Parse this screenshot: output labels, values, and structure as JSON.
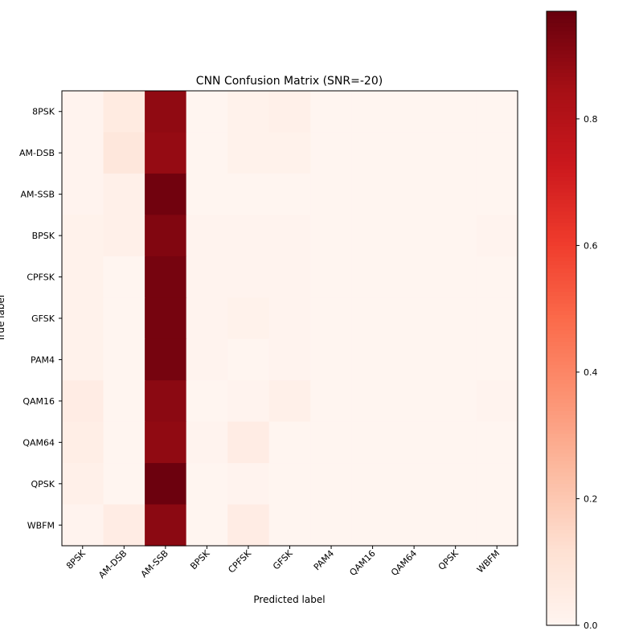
{
  "chart_data": {
    "type": "heatmap",
    "title": "CNN Confusion Matrix (SNR=-20)",
    "xlabel": "Predicted label",
    "ylabel": "True label",
    "x_categories": [
      "8PSK",
      "AM-DSB",
      "AM-SSB",
      "BPSK",
      "CPFSK",
      "GFSK",
      "PAM4",
      "QAM16",
      "QAM64",
      "QPSK",
      "WBFM"
    ],
    "y_categories": [
      "8PSK",
      "AM-DSB",
      "AM-SSB",
      "BPSK",
      "CPFSK",
      "GFSK",
      "PAM4",
      "QAM16",
      "QAM64",
      "QPSK",
      "WBFM"
    ],
    "values": [
      [
        0.01,
        0.06,
        0.89,
        0.0,
        0.02,
        0.03,
        0.0,
        0.0,
        0.0,
        0.0,
        0.0
      ],
      [
        0.01,
        0.08,
        0.88,
        0.0,
        0.02,
        0.02,
        0.0,
        0.0,
        0.0,
        0.0,
        0.0
      ],
      [
        0.01,
        0.03,
        0.95,
        0.0,
        0.0,
        0.0,
        0.0,
        0.0,
        0.0,
        0.0,
        0.0
      ],
      [
        0.02,
        0.03,
        0.92,
        0.01,
        0.01,
        0.01,
        0.0,
        0.0,
        0.0,
        0.0,
        0.01
      ],
      [
        0.02,
        0.0,
        0.94,
        0.01,
        0.01,
        0.01,
        0.0,
        0.0,
        0.0,
        0.0,
        0.0
      ],
      [
        0.02,
        0.0,
        0.94,
        0.01,
        0.02,
        0.01,
        0.0,
        0.0,
        0.0,
        0.0,
        0.0
      ],
      [
        0.02,
        0.0,
        0.94,
        0.01,
        0.0,
        0.01,
        0.0,
        0.0,
        0.0,
        0.0,
        0.0
      ],
      [
        0.05,
        0.0,
        0.9,
        0.0,
        0.01,
        0.03,
        0.0,
        0.0,
        0.0,
        0.0,
        0.01
      ],
      [
        0.04,
        0.0,
        0.89,
        0.01,
        0.05,
        0.0,
        0.0,
        0.0,
        0.0,
        0.0,
        0.0
      ],
      [
        0.03,
        0.0,
        0.96,
        0.0,
        0.01,
        0.0,
        0.0,
        0.0,
        0.0,
        0.0,
        0.0
      ],
      [
        0.01,
        0.05,
        0.9,
        0.0,
        0.05,
        0.0,
        0.0,
        0.0,
        0.0,
        0.0,
        0.0
      ]
    ],
    "colormap": "Reds",
    "colormap_stops": [
      "#fff5f0",
      "#fee0d2",
      "#fcbba1",
      "#fc9272",
      "#fb6a4a",
      "#ef3b2c",
      "#cb181d",
      "#a50f15",
      "#67000d"
    ],
    "vmin": 0.0,
    "vmax": 0.97,
    "colorbar": {
      "ticks": [
        0.0,
        0.2,
        0.4,
        0.6,
        0.8
      ],
      "tick_labels": [
        "0.0",
        "0.2",
        "0.4",
        "0.6",
        "0.8"
      ]
    },
    "grid": false,
    "legend": "none"
  }
}
